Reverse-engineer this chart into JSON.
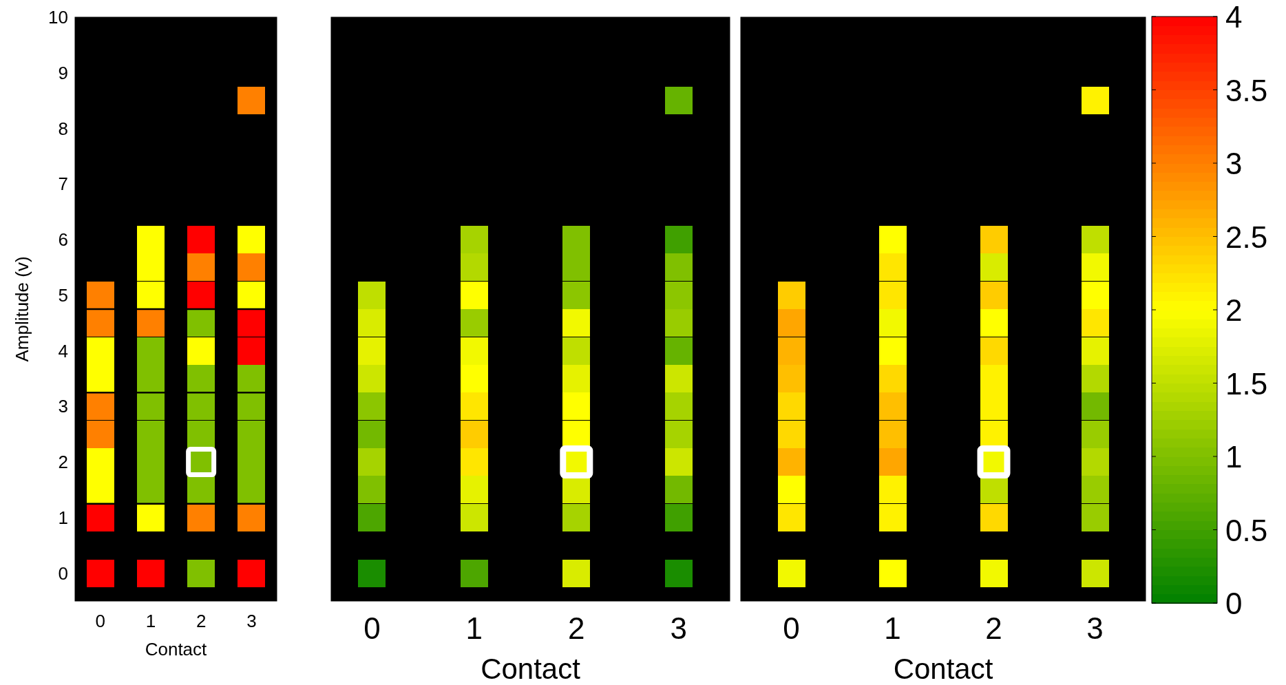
{
  "chart_data": [
    {
      "type": "scatter",
      "xlabel": "Contact",
      "ylabel": "Amplitude (v)",
      "xlim": [
        -0.5,
        3.5
      ],
      "xticks": [
        0,
        1,
        2,
        3
      ],
      "ylim": [
        -0.5,
        10
      ],
      "yticks": [
        0,
        1,
        2,
        3,
        4,
        5,
        6,
        7,
        8,
        9,
        10
      ],
      "ref_lines": [
        {
          "axis": "y",
          "value": 4.75,
          "color": "#000000"
        },
        {
          "axis": "y",
          "value": 3.25,
          "color": "#000000"
        },
        {
          "axis": "y",
          "value": 1.25,
          "color": "#000000"
        }
      ],
      "series": [
        {
          "marker": "square",
          "x": [
            0,
            0,
            0,
            0,
            0,
            0,
            0,
            0,
            0,
            0,
            1,
            1,
            1,
            1,
            1,
            1,
            1,
            1,
            1,
            1,
            1,
            1,
            2,
            2,
            2,
            2,
            2,
            2,
            2,
            2,
            2,
            2,
            2,
            2,
            3,
            3,
            3,
            3,
            3,
            3,
            3,
            3,
            3,
            3,
            3,
            3,
            3
          ],
          "values": [
            0,
            1,
            1.5,
            2,
            2.5,
            3,
            3.5,
            4,
            4.5,
            5,
            0,
            1,
            1.5,
            2,
            2.5,
            3,
            3.5,
            4,
            4.5,
            5,
            5.5,
            6,
            0,
            1,
            1.5,
            2,
            2.5,
            3,
            3.5,
            4,
            4.5,
            5,
            5.5,
            6,
            0,
            1,
            1.5,
            2,
            2.5,
            3,
            3.5,
            4,
            4.5,
            5,
            5.5,
            6,
            8.5
          ],
          "colors": [
            "#ff0000",
            "#ff0000",
            "#ffff00",
            "#ffff00",
            "#ff8000",
            "#ff8000",
            "#ffff00",
            "#ffff00",
            "#ff8000",
            "#ff8000",
            "#ff0000",
            "#ffff00",
            "#80c000",
            "#80c000",
            "#80c000",
            "#80c000",
            "#80c000",
            "#80c000",
            "#ff8000",
            "#ffff00",
            "#ffff00",
            "#ffff00",
            "#80c000",
            "#ff8000",
            "#80c000",
            "#80c000",
            "#80c000",
            "#80c000",
            "#80c000",
            "#ffff00",
            "#80c000",
            "#ff0000",
            "#ff8000",
            "#ff0000",
            "#ff0000",
            "#ff8000",
            "#80c000",
            "#80c000",
            "#80c000",
            "#80c000",
            "#80c000",
            "#ff0000",
            "#ff0000",
            "#ffff00",
            "#ff8000",
            "#ffff00",
            "#ff8000"
          ]
        },
        {
          "marker": "square",
          "color": "#ffffff",
          "x": [
            2
          ],
          "values": [
            2
          ]
        }
      ]
    },
    {
      "type": "scatter",
      "xlabel": "Contact",
      "xlim": [
        -0.4,
        3.5
      ],
      "xticks": [
        0,
        1,
        2,
        3
      ],
      "ylim": [
        -0.5,
        10
      ],
      "tick_labels": "x",
      "series": [
        {
          "marker": "square",
          "x": [
            0,
            0,
            0,
            0,
            0,
            0,
            0,
            0,
            0,
            0,
            1,
            1,
            1,
            1,
            1,
            1,
            1,
            1,
            1,
            1,
            1,
            1,
            2,
            2,
            2,
            2,
            2,
            2,
            2,
            2,
            2,
            2,
            2,
            2,
            3,
            3,
            3,
            3,
            3,
            3,
            3,
            3,
            3,
            3,
            3,
            3,
            3
          ],
          "values": [
            0,
            1,
            1.5,
            2,
            2.5,
            3,
            3.5,
            4,
            4.5,
            5,
            0,
            1,
            1.5,
            2,
            2.5,
            3,
            3.5,
            4,
            4.5,
            5,
            5.5,
            6,
            0,
            1,
            1.5,
            2,
            2.5,
            3,
            3.5,
            4,
            4.5,
            5,
            5.5,
            6,
            0,
            1,
            1.5,
            2,
            2.5,
            3,
            3.5,
            4,
            4.5,
            5,
            5.5,
            6,
            8.5
          ],
          "colors": [
            "#1a8d00",
            "#4da600",
            "#80c000",
            "#a6d300",
            "#73b900",
            "#8cc600",
            "#cce600",
            "#e6f200",
            "#d9ec00",
            "#bfdf00",
            "#4da600",
            "#cce600",
            "#e6f200",
            "#ffe600",
            "#ffcc00",
            "#ffe600",
            "#ffff00",
            "#f2f900",
            "#99cc00",
            "#ffff00",
            "#b3d900",
            "#a6d300",
            "#d9ec00",
            "#a6d300",
            "#d9ec00",
            "#f2f900",
            "#ffff00",
            "#ffff00",
            "#e6f200",
            "#bfdf00",
            "#f2f900",
            "#8cc600",
            "#80c000",
            "#80c000",
            "#1a8d00",
            "#40a000",
            "#73b900",
            "#cce600",
            "#a6d300",
            "#a6d300",
            "#cce600",
            "#66b300",
            "#99cc00",
            "#8cc600",
            "#80c000",
            "#40a000",
            "#66b300"
          ]
        },
        {
          "marker": "square",
          "color": "#ffffff",
          "x": [
            2
          ],
          "values": [
            2
          ]
        }
      ]
    },
    {
      "type": "scatter",
      "xlabel": "Contact",
      "xlim": [
        -0.5,
        3.5
      ],
      "xticks": [
        0,
        1,
        2,
        3
      ],
      "ylim": [
        -0.5,
        10
      ],
      "tick_labels": "x",
      "clim": [
        0,
        4
      ],
      "cticks": [
        0,
        0.5,
        1,
        1.5,
        2,
        2.5,
        3,
        3.5,
        4
      ],
      "series": [
        {
          "marker": "square",
          "x": [
            0,
            0,
            0,
            0,
            0,
            0,
            0,
            0,
            0,
            0,
            1,
            1,
            1,
            1,
            1,
            1,
            1,
            1,
            1,
            1,
            1,
            1,
            2,
            2,
            2,
            2,
            2,
            2,
            2,
            2,
            2,
            2,
            2,
            2,
            3,
            3,
            3,
            3,
            3,
            3,
            3,
            3,
            3,
            3,
            3,
            3,
            3
          ],
          "values": [
            0,
            1,
            1.5,
            2,
            2.5,
            3,
            3.5,
            4,
            4.5,
            5,
            0,
            1,
            1.5,
            2,
            2.5,
            3,
            3.5,
            4,
            4.5,
            5,
            5.5,
            6,
            0,
            1,
            1.5,
            2,
            2.5,
            3,
            3.5,
            4,
            4.5,
            5,
            5.5,
            6,
            0,
            1,
            1.5,
            2,
            2.5,
            3,
            3.5,
            4,
            4.5,
            5,
            5.5,
            6,
            8.5
          ],
          "colors": [
            "#f2f900",
            "#ffe600",
            "#ffff00",
            "#ffb300",
            "#ffd900",
            "#ffd900",
            "#ffbf00",
            "#ffb300",
            "#ffa600",
            "#ffcc00",
            "#ffff00",
            "#fff200",
            "#fff200",
            "#ffa600",
            "#ffbf00",
            "#ffbf00",
            "#ffd900",
            "#ffff00",
            "#f2f900",
            "#ffe600",
            "#ffe600",
            "#ffff00",
            "#f2f900",
            "#ffd900",
            "#bfdf00",
            "#f2f900",
            "#fff200",
            "#fff200",
            "#fff200",
            "#ffd900",
            "#ffff00",
            "#ffcc00",
            "#d9ec00",
            "#ffcc00",
            "#cce600",
            "#99cc00",
            "#99cc00",
            "#b3d900",
            "#99cc00",
            "#73b900",
            "#b3d900",
            "#e6f200",
            "#ffe600",
            "#ffff00",
            "#f2f900",
            "#bfdf00",
            "#fff200"
          ]
        },
        {
          "marker": "square",
          "color": "#ffffff",
          "x": [
            2
          ],
          "values": [
            2
          ]
        }
      ]
    }
  ]
}
